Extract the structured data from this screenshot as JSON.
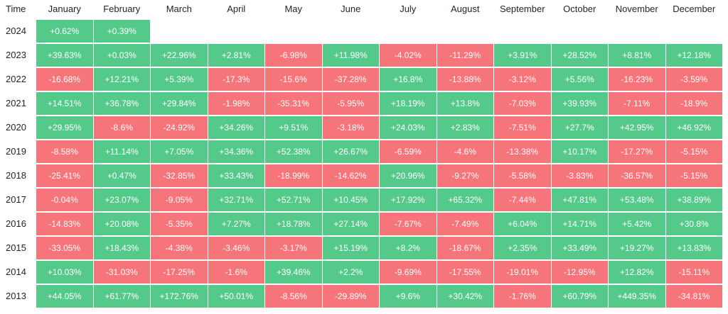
{
  "table": {
    "time_header": "Time",
    "months": [
      "January",
      "February",
      "March",
      "April",
      "May",
      "June",
      "July",
      "August",
      "September",
      "October",
      "November",
      "December"
    ],
    "colors": {
      "positive": "#55c98a",
      "negative": "#f6757a"
    },
    "rows": [
      {
        "year": "2024",
        "values": [
          "+0.62%",
          "+0.39%"
        ]
      },
      {
        "year": "2023",
        "values": [
          "+39.63%",
          "+0.03%",
          "+22.96%",
          "+2.81%",
          "-6.98%",
          "+11.98%",
          "-4.02%",
          "-11.29%",
          "+3.91%",
          "+28.52%",
          "+8.81%",
          "+12.18%"
        ]
      },
      {
        "year": "2022",
        "values": [
          "-16.68%",
          "+12.21%",
          "+5.39%",
          "-17.3%",
          "-15.6%",
          "-37.28%",
          "+16.8%",
          "-13.88%",
          "-3.12%",
          "+5.56%",
          "-16.23%",
          "-3.59%"
        ]
      },
      {
        "year": "2021",
        "values": [
          "+14.51%",
          "+36.78%",
          "+29.84%",
          "-1.98%",
          "-35.31%",
          "-5.95%",
          "+18.19%",
          "+13.8%",
          "-7.03%",
          "+39.93%",
          "-7.11%",
          "-18.9%"
        ]
      },
      {
        "year": "2020",
        "values": [
          "+29.95%",
          "-8.6%",
          "-24.92%",
          "+34.26%",
          "+9.51%",
          "-3.18%",
          "+24.03%",
          "+2.83%",
          "-7.51%",
          "+27.7%",
          "+42.95%",
          "+46.92%"
        ]
      },
      {
        "year": "2019",
        "values": [
          "-8.58%",
          "+11.14%",
          "+7.05%",
          "+34.36%",
          "+52.38%",
          "+26.67%",
          "-6.59%",
          "-4.6%",
          "-13.38%",
          "+10.17%",
          "-17.27%",
          "-5.15%"
        ]
      },
      {
        "year": "2018",
        "values": [
          "-25.41%",
          "+0.47%",
          "-32.85%",
          "+33.43%",
          "-18.99%",
          "-14.62%",
          "+20.96%",
          "-9.27%",
          "-5.58%",
          "-3.83%",
          "-36.57%",
          "-5.15%"
        ]
      },
      {
        "year": "2017",
        "values": [
          "-0.04%",
          "+23.07%",
          "-9.05%",
          "+32.71%",
          "+52.71%",
          "+10.45%",
          "+17.92%",
          "+65.32%",
          "-7.44%",
          "+47.81%",
          "+53.48%",
          "+38.89%"
        ]
      },
      {
        "year": "2016",
        "values": [
          "-14.83%",
          "+20.08%",
          "-5.35%",
          "+7.27%",
          "+18.78%",
          "+27.14%",
          "-7.67%",
          "-7.49%",
          "+6.04%",
          "+14.71%",
          "+5.42%",
          "+30.8%"
        ]
      },
      {
        "year": "2015",
        "values": [
          "-33.05%",
          "+18.43%",
          "-4.38%",
          "-3.46%",
          "-3.17%",
          "+15.19%",
          "+8.2%",
          "-18.67%",
          "+2.35%",
          "+33.49%",
          "+19.27%",
          "+13.83%"
        ]
      },
      {
        "year": "2014",
        "values": [
          "+10.03%",
          "-31.03%",
          "-17.25%",
          "-1.6%",
          "+39.46%",
          "+2.2%",
          "-9.69%",
          "-17.55%",
          "-19.01%",
          "-12.95%",
          "+12.82%",
          "-15.11%"
        ]
      },
      {
        "year": "2013",
        "values": [
          "+44.05%",
          "+61.77%",
          "+172.76%",
          "+50.01%",
          "-8.56%",
          "-29.89%",
          "+9.6%",
          "+30.42%",
          "-1.76%",
          "+60.79%",
          "+449.35%",
          "-34.81%"
        ]
      }
    ]
  }
}
